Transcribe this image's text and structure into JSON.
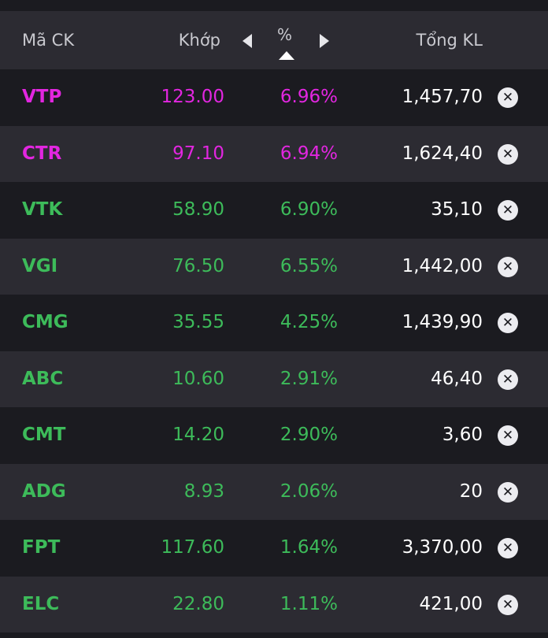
{
  "header": {
    "code_label": "Mã CK",
    "match_label": "Khớp",
    "pct_label": "%",
    "volume_label": "Tổng KL"
  },
  "colors": {
    "ceiling": "#e226e0",
    "up": "#3dbb5a",
    "background": "#1b1b20",
    "row_alt": "#2c2b32"
  },
  "rows": [
    {
      "code": "VTP",
      "price": "123.00",
      "pct": "6.96%",
      "volume": "1,457,70",
      "color": "pink"
    },
    {
      "code": "CTR",
      "price": "97.10",
      "pct": "6.94%",
      "volume": "1,624,40",
      "color": "pink"
    },
    {
      "code": "VTK",
      "price": "58.90",
      "pct": "6.90%",
      "volume": "35,10",
      "color": "green"
    },
    {
      "code": "VGI",
      "price": "76.50",
      "pct": "6.55%",
      "volume": "1,442,00",
      "color": "green"
    },
    {
      "code": "CMG",
      "price": "35.55",
      "pct": "4.25%",
      "volume": "1,439,90",
      "color": "green"
    },
    {
      "code": "ABC",
      "price": "10.60",
      "pct": "2.91%",
      "volume": "46,40",
      "color": "green"
    },
    {
      "code": "CMT",
      "price": "14.20",
      "pct": "2.90%",
      "volume": "3,60",
      "color": "green"
    },
    {
      "code": "ADG",
      "price": "8.93",
      "pct": "2.06%",
      "volume": "20",
      "color": "green"
    },
    {
      "code": "FPT",
      "price": "117.60",
      "pct": "1.64%",
      "volume": "3,370,00",
      "color": "green"
    },
    {
      "code": "ELC",
      "price": "22.80",
      "pct": "1.11%",
      "volume": "421,00",
      "color": "green"
    }
  ],
  "icons": {
    "prev": "caret-left-icon",
    "next": "caret-right-icon",
    "sort": "sort-up-icon",
    "remove": "close-circle-icon"
  },
  "close_glyph": "✕"
}
